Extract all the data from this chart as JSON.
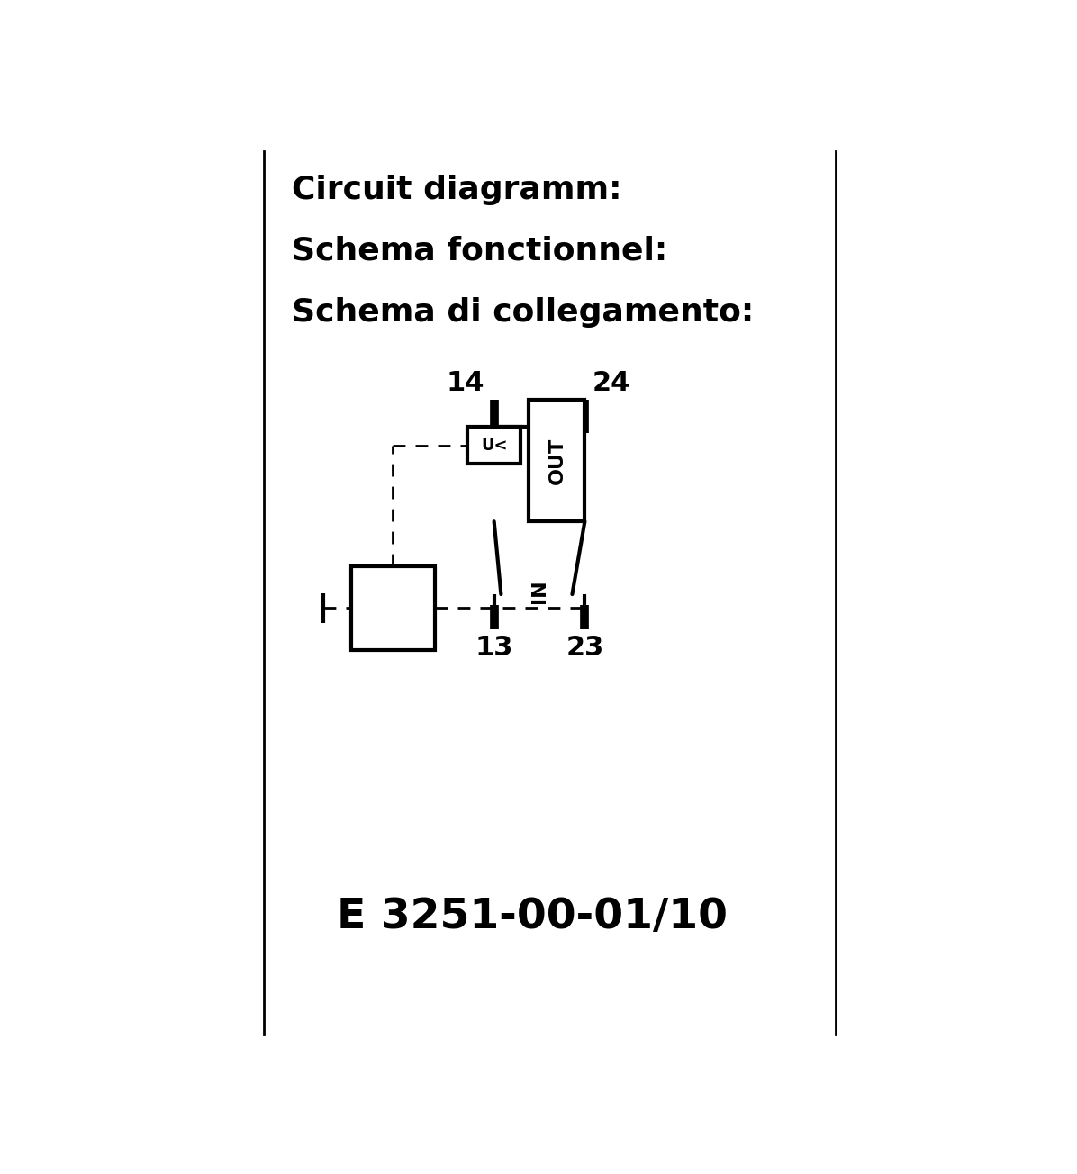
{
  "title_lines": [
    "Circuit diagramm:",
    "Schema fonctionnel:",
    "Schema di collegamento:"
  ],
  "model_text": "E 3251-00-01/10",
  "bg_color": "#ffffff",
  "line_color": "#000000",
  "title_fontsize": 26,
  "model_fontsize": 34,
  "label_fontsize": 22,
  "io_fontsize": 16,
  "uc_fontsize": 13,
  "border_lw": 2.0,
  "circuit_lw": 3.0,
  "terminal_lw": 7.0,
  "dash_lw": 2.0
}
